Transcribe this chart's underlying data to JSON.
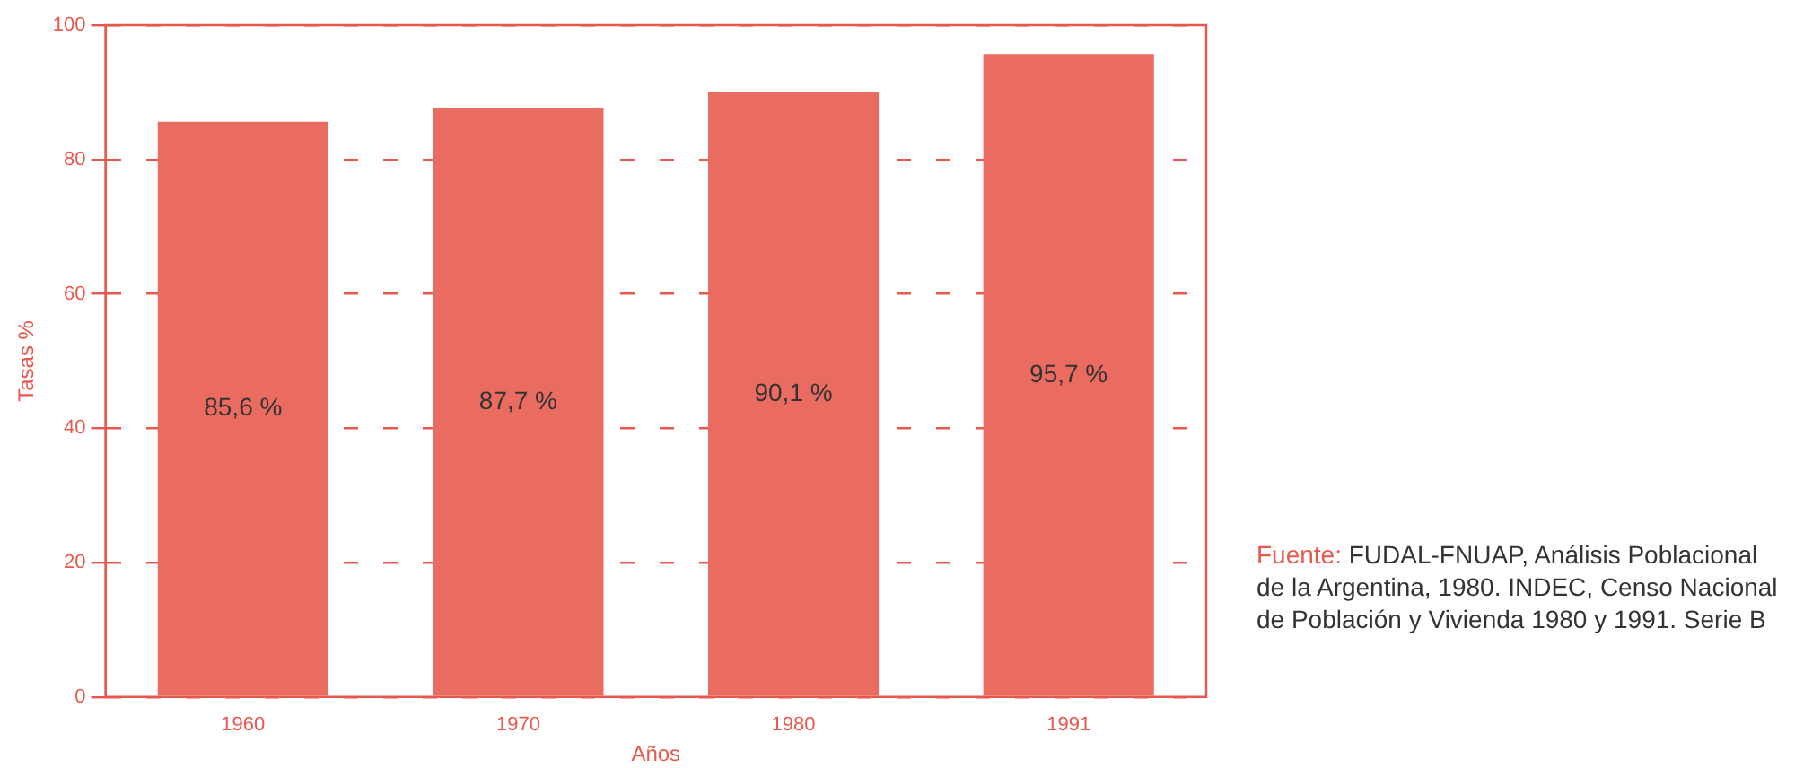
{
  "chart_data": {
    "type": "bar",
    "xlabel": "Años",
    "ylabel": "Tasas %",
    "categories": [
      "1960",
      "1970",
      "1980",
      "1991"
    ],
    "values": [
      85.6,
      87.7,
      90.1,
      95.7
    ],
    "value_labels": [
      "85,6 %",
      "87,7 %",
      "90,1 %",
      "95,7 %"
    ],
    "color": "#ea6b60",
    "ylim": [
      0,
      100
    ],
    "yticks": [
      0,
      20,
      40,
      60,
      80,
      100
    ],
    "grid": "y",
    "line_style": "dashed",
    "annotations": [
      "Fuente: FUDAL-FNUAP, Análisis Poblacional de la Argentina, 1980. INDEC, Censo Nacional de Población y Vivienda 1980 y 1991. Serie B"
    ]
  }
}
